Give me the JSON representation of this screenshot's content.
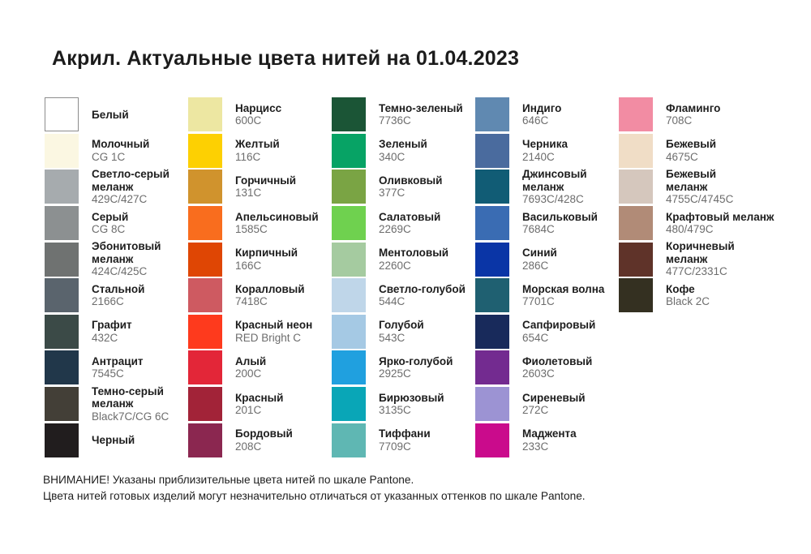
{
  "title": "Акрил. Актуальные цвета нитей на 01.04.2023",
  "columns": [
    {
      "items": [
        {
          "name": "Белый",
          "code": "",
          "hex": "#FFFFFF",
          "border": true
        },
        {
          "name": "Молочный",
          "code": "CG 1C",
          "hex": "#FBF7E2"
        },
        {
          "name": "Светло-серый\nмеланж",
          "code": "429C/427C",
          "hex": "#A6ABAE"
        },
        {
          "name": "Серый",
          "code": "CG 8C",
          "hex": "#8C9091"
        },
        {
          "name": "Эбонитовый\nмеланж",
          "code": "424C/425C",
          "hex": "#6F7271"
        },
        {
          "name": "Стальной",
          "code": "2166C",
          "hex": "#5A646D"
        },
        {
          "name": "Графит",
          "code": "432C",
          "hex": "#3B4A47"
        },
        {
          "name": "Антрацит",
          "code": "7545C",
          "hex": "#21374A"
        },
        {
          "name": "Темно-серый\nмеланж",
          "code": "Black7C/CG 6C",
          "hex": "#433F37"
        },
        {
          "name": "Черный",
          "code": "",
          "hex": "#211D1E"
        }
      ]
    },
    {
      "items": [
        {
          "name": "Нарцисс",
          "code": "600C",
          "hex": "#EDE7A2"
        },
        {
          "name": "Желтый",
          "code": "116C",
          "hex": "#FDD002"
        },
        {
          "name": "Горчичный",
          "code": "131C",
          "hex": "#D0932D"
        },
        {
          "name": "Апельсиновый",
          "code": "1585C",
          "hex": "#F96D1E"
        },
        {
          "name": "Кирпичный",
          "code": "166C",
          "hex": "#DF4604"
        },
        {
          "name": "Коралловый",
          "code": "7418C",
          "hex": "#CE5A61"
        },
        {
          "name": "Красный неон",
          "code": "RED Bright C",
          "hex": "#FE3A1D"
        },
        {
          "name": "Алый",
          "code": "200C",
          "hex": "#E32638"
        },
        {
          "name": "Красный",
          "code": "201C",
          "hex": "#A22338"
        },
        {
          "name": "Бордовый",
          "code": "208C",
          "hex": "#8B2750"
        }
      ]
    },
    {
      "items": [
        {
          "name": "Темно-зеленый",
          "code": "7736C",
          "hex": "#1B5536"
        },
        {
          "name": "Зеленый",
          "code": "340C",
          "hex": "#07A365"
        },
        {
          "name": "Оливковый",
          "code": "377C",
          "hex": "#7AA444"
        },
        {
          "name": "Салатовый",
          "code": "2269C",
          "hex": "#6FD14F"
        },
        {
          "name": "Ментоловый",
          "code": "2260C",
          "hex": "#A5CBA0"
        },
        {
          "name": "Светло-голубой",
          "code": "544C",
          "hex": "#BFD6E9"
        },
        {
          "name": "Голубой",
          "code": "543C",
          "hex": "#A5C9E4"
        },
        {
          "name": "Ярко-голубой",
          "code": "2925C",
          "hex": "#20A0DF"
        },
        {
          "name": "Бирюзовый",
          "code": "3135C",
          "hex": "#09A6B7"
        },
        {
          "name": "Тиффани",
          "code": "7709C",
          "hex": "#5FB7B3"
        }
      ]
    },
    {
      "items": [
        {
          "name": "Индиго",
          "code": "646C",
          "hex": "#6089B1"
        },
        {
          "name": "Черника",
          "code": "2140C",
          "hex": "#4A6B9E"
        },
        {
          "name": "Джинсовый\nмеланж",
          "code": "7693C/428C",
          "hex": "#115C75"
        },
        {
          "name": "Васильковый",
          "code": "7684C",
          "hex": "#3A6CB3"
        },
        {
          "name": "Синий",
          "code": "286C",
          "hex": "#0A35A6"
        },
        {
          "name": "Морская волна",
          "code": "7701C",
          "hex": "#1F6071"
        },
        {
          "name": "Сапфировый",
          "code": "654C",
          "hex": "#182A5B"
        },
        {
          "name": "Фиолетовый",
          "code": "2603C",
          "hex": "#732B90"
        },
        {
          "name": "Сиреневый",
          "code": "272C",
          "hex": "#9C93D3"
        },
        {
          "name": "Маджента",
          "code": "233C",
          "hex": "#CA0B8C"
        }
      ]
    },
    {
      "items": [
        {
          "name": "Фламинго",
          "code": "708C",
          "hex": "#F28CA3"
        },
        {
          "name": "Бежевый",
          "code": "4675C",
          "hex": "#F0DDC6"
        },
        {
          "name": "Бежевый\nмеланж",
          "code": "4755C/4745C",
          "hex": "#D5C7BD"
        },
        {
          "name": "Крафтовый меланж",
          "code": "480/479C",
          "hex": "#B18B77"
        },
        {
          "name": "Коричневый\nмеланж",
          "code": "477C/2331C",
          "hex": "#5F3329"
        },
        {
          "name": "Кофе",
          "code": "Black 2C",
          "hex": "#343021"
        }
      ]
    }
  ],
  "footer": {
    "line1": "ВНИМАНИЕ! Указаны приблизительные цвета нитей по шкале Pantone.",
    "line2": "Цвета нитей готовых изделий могут незначительно отличаться от указанных оттенков по шкале Pantone."
  }
}
